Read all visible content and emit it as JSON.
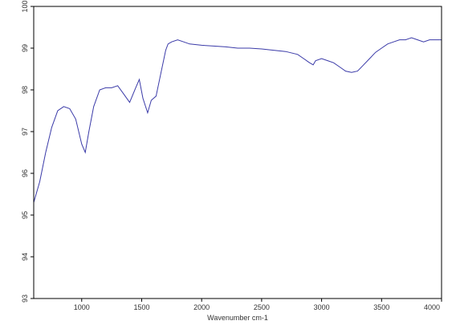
{
  "chart_data": {
    "type": "line",
    "title": "",
    "xlabel": "Wavenumber cm-1",
    "ylabel": "",
    "xlim": [
      600,
      4000
    ],
    "ylim": [
      93,
      100
    ],
    "xticks": [
      1000,
      1500,
      2000,
      2500,
      3000,
      3500,
      4000
    ],
    "yticks": [
      93,
      94,
      95,
      96,
      97,
      98,
      99,
      100
    ],
    "grid": false,
    "legend": "none",
    "line_color": "#3a3aa8",
    "series": [
      {
        "x": [
          600,
          650,
          700,
          750,
          800,
          850,
          900,
          950,
          1000,
          1030,
          1060,
          1100,
          1150,
          1200,
          1250,
          1300,
          1350,
          1400,
          1450,
          1480,
          1510,
          1550,
          1580,
          1620,
          1660,
          1700,
          1720,
          1750,
          1800,
          1850,
          1900,
          2000,
          2100,
          2200,
          2300,
          2400,
          2500,
          2600,
          2700,
          2800,
          2850,
          2900,
          2930,
          2950,
          3000,
          3050,
          3100,
          3150,
          3200,
          3250,
          3300,
          3350,
          3400,
          3450,
          3500,
          3550,
          3600,
          3650,
          3700,
          3750,
          3800,
          3850,
          3900,
          3950,
          4000
        ],
        "y": [
          95.3,
          95.8,
          96.5,
          97.1,
          97.5,
          97.6,
          97.55,
          97.3,
          96.7,
          96.5,
          97.0,
          97.6,
          98.0,
          98.05,
          98.05,
          98.1,
          97.9,
          97.7,
          98.05,
          98.25,
          97.8,
          97.45,
          97.75,
          97.85,
          98.4,
          98.95,
          99.1,
          99.15,
          99.2,
          99.15,
          99.1,
          99.07,
          99.05,
          99.03,
          99.0,
          99.0,
          98.98,
          98.95,
          98.92,
          98.85,
          98.75,
          98.65,
          98.6,
          98.7,
          98.75,
          98.7,
          98.65,
          98.55,
          98.45,
          98.42,
          98.45,
          98.6,
          98.75,
          98.9,
          99.0,
          99.1,
          99.15,
          99.2,
          99.2,
          99.25,
          99.2,
          99.15,
          99.2,
          99.2,
          99.2
        ]
      }
    ]
  }
}
